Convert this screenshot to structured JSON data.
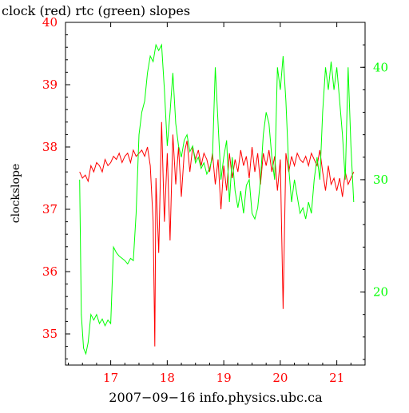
{
  "chart_data": {
    "type": "line",
    "title": "clock (red) rtc (green) slopes",
    "xlabel": "2007−09−16  info.physics.ubc.ca",
    "ylabel": "clockslope",
    "x_ticks": [
      17,
      18,
      19,
      20,
      21
    ],
    "x_tick_labels": [
      "17",
      "18",
      "19",
      "20",
      "21"
    ],
    "xlim": [
      16.2,
      21.5
    ],
    "y_left": {
      "lim": [
        34.5,
        40.0
      ],
      "ticks": [
        35,
        36,
        37,
        38,
        39,
        40
      ],
      "tick_labels": [
        "35",
        "36",
        "37",
        "38",
        "39",
        "40"
      ],
      "color": "#ff0000"
    },
    "y_right": {
      "lim": [
        13.5,
        44.0
      ],
      "ticks": [
        20,
        30,
        40
      ],
      "tick_labels": [
        "20",
        "30",
        "40"
      ],
      "color": "#00ff00"
    },
    "series": [
      {
        "name": "clock",
        "color": "#ff0000",
        "axis": "left",
        "points": [
          [
            16.45,
            37.6
          ],
          [
            16.5,
            37.5
          ],
          [
            16.55,
            37.55
          ],
          [
            16.6,
            37.45
          ],
          [
            16.65,
            37.7
          ],
          [
            16.7,
            37.6
          ],
          [
            16.75,
            37.75
          ],
          [
            16.8,
            37.7
          ],
          [
            16.85,
            37.6
          ],
          [
            16.9,
            37.8
          ],
          [
            16.95,
            37.7
          ],
          [
            17.0,
            37.75
          ],
          [
            17.05,
            37.85
          ],
          [
            17.1,
            37.8
          ],
          [
            17.15,
            37.9
          ],
          [
            17.2,
            37.75
          ],
          [
            17.25,
            37.85
          ],
          [
            17.3,
            37.9
          ],
          [
            17.35,
            37.75
          ],
          [
            17.4,
            37.95
          ],
          [
            17.45,
            37.85
          ],
          [
            17.5,
            37.9
          ],
          [
            17.55,
            37.95
          ],
          [
            17.6,
            37.85
          ],
          [
            17.65,
            38.0
          ],
          [
            17.7,
            37.7
          ],
          [
            17.75,
            36.8
          ],
          [
            17.78,
            34.8
          ],
          [
            17.8,
            37.5
          ],
          [
            17.85,
            36.3
          ],
          [
            17.9,
            38.4
          ],
          [
            17.95,
            36.8
          ],
          [
            18.0,
            37.9
          ],
          [
            18.05,
            36.5
          ],
          [
            18.1,
            38.2
          ],
          [
            18.15,
            37.4
          ],
          [
            18.2,
            38.0
          ],
          [
            18.25,
            37.2
          ],
          [
            18.3,
            37.9
          ],
          [
            18.35,
            38.1
          ],
          [
            18.4,
            37.6
          ],
          [
            18.45,
            38.0
          ],
          [
            18.5,
            37.8
          ],
          [
            18.55,
            37.95
          ],
          [
            18.6,
            37.7
          ],
          [
            18.65,
            37.9
          ],
          [
            18.7,
            37.8
          ],
          [
            18.75,
            37.6
          ],
          [
            18.8,
            37.9
          ],
          [
            18.85,
            37.4
          ],
          [
            18.9,
            37.8
          ],
          [
            18.95,
            37.0
          ],
          [
            19.0,
            37.7
          ],
          [
            19.05,
            37.3
          ],
          [
            19.1,
            37.9
          ],
          [
            19.15,
            37.5
          ],
          [
            19.2,
            37.8
          ],
          [
            19.25,
            37.6
          ],
          [
            19.3,
            37.95
          ],
          [
            19.35,
            37.7
          ],
          [
            19.4,
            37.85
          ],
          [
            19.45,
            37.5
          ],
          [
            19.5,
            38.0
          ],
          [
            19.55,
            37.6
          ],
          [
            19.6,
            37.9
          ],
          [
            19.65,
            37.4
          ],
          [
            19.7,
            37.9
          ],
          [
            19.75,
            37.7
          ],
          [
            19.8,
            37.95
          ],
          [
            19.85,
            37.6
          ],
          [
            19.9,
            37.85
          ],
          [
            19.95,
            37.3
          ],
          [
            20.0,
            37.8
          ],
          [
            20.05,
            35.4
          ],
          [
            20.1,
            37.9
          ],
          [
            20.15,
            37.6
          ],
          [
            20.2,
            37.85
          ],
          [
            20.25,
            37.7
          ],
          [
            20.3,
            37.9
          ],
          [
            20.35,
            37.8
          ],
          [
            20.4,
            37.75
          ],
          [
            20.45,
            37.85
          ],
          [
            20.5,
            37.7
          ],
          [
            20.55,
            37.9
          ],
          [
            20.6,
            37.8
          ],
          [
            20.65,
            37.7
          ],
          [
            20.7,
            37.95
          ],
          [
            20.75,
            37.6
          ],
          [
            20.8,
            37.3
          ],
          [
            20.85,
            37.7
          ],
          [
            20.9,
            37.4
          ],
          [
            20.95,
            37.5
          ],
          [
            21.0,
            37.3
          ],
          [
            21.05,
            37.5
          ],
          [
            21.1,
            37.2
          ],
          [
            21.15,
            37.6
          ],
          [
            21.2,
            37.4
          ],
          [
            21.25,
            37.5
          ],
          [
            21.3,
            37.6
          ]
        ]
      },
      {
        "name": "rtc",
        "color": "#00ff00",
        "axis": "right",
        "points": [
          [
            16.45,
            30.0
          ],
          [
            16.48,
            18.0
          ],
          [
            16.52,
            15.0
          ],
          [
            16.56,
            14.5
          ],
          [
            16.6,
            15.5
          ],
          [
            16.65,
            18.0
          ],
          [
            16.7,
            17.5
          ],
          [
            16.75,
            18.0
          ],
          [
            16.8,
            17.2
          ],
          [
            16.85,
            17.6
          ],
          [
            16.9,
            17.0
          ],
          [
            16.95,
            17.5
          ],
          [
            17.0,
            17.2
          ],
          [
            17.05,
            24.0
          ],
          [
            17.1,
            23.5
          ],
          [
            17.15,
            23.2
          ],
          [
            17.2,
            23.0
          ],
          [
            17.25,
            22.8
          ],
          [
            17.3,
            22.5
          ],
          [
            17.35,
            23.0
          ],
          [
            17.4,
            22.8
          ],
          [
            17.45,
            27.0
          ],
          [
            17.5,
            34.0
          ],
          [
            17.55,
            36.0
          ],
          [
            17.6,
            37.0
          ],
          [
            17.65,
            39.5
          ],
          [
            17.7,
            41.0
          ],
          [
            17.75,
            40.5
          ],
          [
            17.8,
            42.0
          ],
          [
            17.85,
            41.5
          ],
          [
            17.9,
            42.0
          ],
          [
            17.95,
            38.0
          ],
          [
            18.0,
            33.0
          ],
          [
            18.05,
            36.0
          ],
          [
            18.1,
            39.5
          ],
          [
            18.15,
            35.0
          ],
          [
            18.2,
            33.0
          ],
          [
            18.25,
            32.0
          ],
          [
            18.3,
            33.5
          ],
          [
            18.35,
            34.0
          ],
          [
            18.4,
            32.5
          ],
          [
            18.45,
            33.0
          ],
          [
            18.5,
            31.5
          ],
          [
            18.55,
            32.0
          ],
          [
            18.6,
            31.0
          ],
          [
            18.65,
            31.5
          ],
          [
            18.7,
            30.5
          ],
          [
            18.75,
            31.0
          ],
          [
            18.8,
            32.0
          ],
          [
            18.85,
            40.0
          ],
          [
            18.9,
            35.0
          ],
          [
            18.95,
            30.0
          ],
          [
            19.0,
            32.0
          ],
          [
            19.05,
            33.5
          ],
          [
            19.1,
            28.0
          ],
          [
            19.15,
            32.0
          ],
          [
            19.2,
            29.0
          ],
          [
            19.25,
            27.5
          ],
          [
            19.3,
            29.0
          ],
          [
            19.35,
            27.0
          ],
          [
            19.4,
            29.5
          ],
          [
            19.45,
            30.0
          ],
          [
            19.5,
            27.0
          ],
          [
            19.55,
            26.5
          ],
          [
            19.6,
            27.5
          ],
          [
            19.65,
            30.0
          ],
          [
            19.7,
            34.0
          ],
          [
            19.75,
            36.0
          ],
          [
            19.8,
            35.0
          ],
          [
            19.85,
            32.0
          ],
          [
            19.9,
            30.0
          ],
          [
            19.95,
            40.0
          ],
          [
            20.0,
            38.0
          ],
          [
            20.05,
            41.0
          ],
          [
            20.1,
            37.0
          ],
          [
            20.15,
            31.0
          ],
          [
            20.2,
            28.0
          ],
          [
            20.25,
            30.0
          ],
          [
            20.3,
            28.5
          ],
          [
            20.35,
            27.0
          ],
          [
            20.4,
            27.5
          ],
          [
            20.45,
            26.5
          ],
          [
            20.5,
            28.0
          ],
          [
            20.55,
            27.0
          ],
          [
            20.6,
            30.0
          ],
          [
            20.65,
            32.0
          ],
          [
            20.7,
            30.0
          ],
          [
            20.75,
            36.0
          ],
          [
            20.8,
            40.0
          ],
          [
            20.85,
            38.0
          ],
          [
            20.9,
            40.5
          ],
          [
            20.95,
            38.0
          ],
          [
            21.0,
            40.0
          ],
          [
            21.05,
            37.0
          ],
          [
            21.1,
            34.0
          ],
          [
            21.15,
            30.0
          ],
          [
            21.2,
            40.0
          ],
          [
            21.25,
            33.0
          ],
          [
            21.3,
            28.0
          ]
        ]
      }
    ]
  }
}
